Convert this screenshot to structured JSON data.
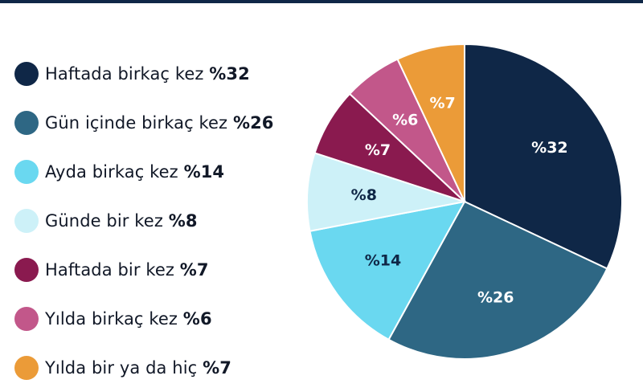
{
  "chart_data": {
    "type": "pie",
    "categories": [
      "Haftada birkaç kez",
      "Gün içinde birkaç kez",
      "Ayda birkaç kez",
      "Günde bir kez",
      "Haftada bir kez",
      "Yılda birkaç kez",
      "Yılda bir ya da hiç"
    ],
    "values": [
      32,
      26,
      14,
      8,
      7,
      6,
      7
    ],
    "value_labels": [
      "%32",
      "%26",
      "%14",
      "%8",
      "%7",
      "%6",
      "%7"
    ],
    "colors": [
      "#0f2747",
      "#2e6784",
      "#6ad8f0",
      "#cdf1f8",
      "#8a1a4f",
      "#c2578a",
      "#eb9b38"
    ],
    "label_colors": [
      "#ffffff",
      "#ffffff",
      "#0f2747",
      "#0f2747",
      "#ffffff",
      "#ffffff",
      "#ffffff"
    ],
    "legend_placement": "left",
    "start": "12 o'clock, clockwise"
  },
  "legend": [
    {
      "label": "Haftada birkaç kez",
      "value": "%32"
    },
    {
      "label": "Gün içinde birkaç kez",
      "value": "%26"
    },
    {
      "label": "Ayda birkaç kez",
      "value": "%14"
    },
    {
      "label": "Günde bir kez",
      "value": "%8"
    },
    {
      "label": "Haftada bir kez",
      "value": "%7"
    },
    {
      "label": "Yılda birkaç kez",
      "value": "%6"
    },
    {
      "label": "Yılda bir ya da hiç",
      "value": "%7"
    }
  ]
}
